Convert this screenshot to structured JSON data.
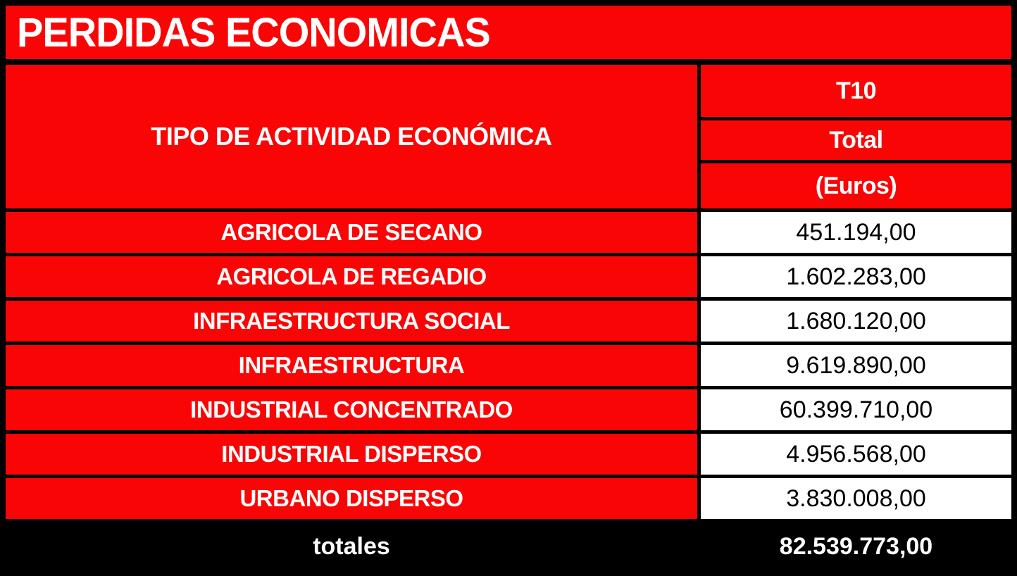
{
  "title": "PERDIDAS ECONOMICAS",
  "colors": {
    "red": "#fa0505",
    "black": "#000000",
    "white": "#ffffff",
    "text_on_red": "#ffffff",
    "text_on_white": "#000000"
  },
  "table": {
    "header": {
      "activity_label": "TIPO DE ACTIVIDAD ECONÓMICA",
      "code": "T10",
      "total_label": "Total",
      "unit_label": "(Euros)"
    },
    "rows": [
      {
        "label": "AGRICOLA DE SECANO",
        "value": "451.194,00"
      },
      {
        "label": "AGRICOLA DE REGADIO",
        "value": "1.602.283,00"
      },
      {
        "label": "INFRAESTRUCTURA SOCIAL",
        "value": "1.680.120,00"
      },
      {
        "label": "INFRAESTRUCTURA",
        "value": "9.619.890,00"
      },
      {
        "label": "INDUSTRIAL CONCENTRADO",
        "value": "60.399.710,00"
      },
      {
        "label": "INDUSTRIAL DISPERSO",
        "value": "4.956.568,00"
      },
      {
        "label": "URBANO DISPERSO",
        "value": "3.830.008,00"
      }
    ],
    "footer": {
      "label": "totales",
      "value": "82.539.773,00"
    }
  },
  "chart_data": {
    "type": "table",
    "title": "PERDIDAS ECONOMICAS",
    "column_headers": [
      "TIPO DE ACTIVIDAD ECONÓMICA",
      "T10 / Total / (Euros)"
    ],
    "categories": [
      "AGRICOLA DE SECANO",
      "AGRICOLA DE REGADIO",
      "INFRAESTRUCTURA SOCIAL",
      "INFRAESTRUCTURA",
      "INDUSTRIAL CONCENTRADO",
      "INDUSTRIAL DISPERSO",
      "URBANO DISPERSO"
    ],
    "values": [
      451194.0,
      1602283.0,
      1680120.0,
      9619890.0,
      60399710.0,
      4956568.0,
      3830008.0
    ],
    "total_label": "totales",
    "total_value": 82539773.0,
    "unit": "Euros"
  }
}
